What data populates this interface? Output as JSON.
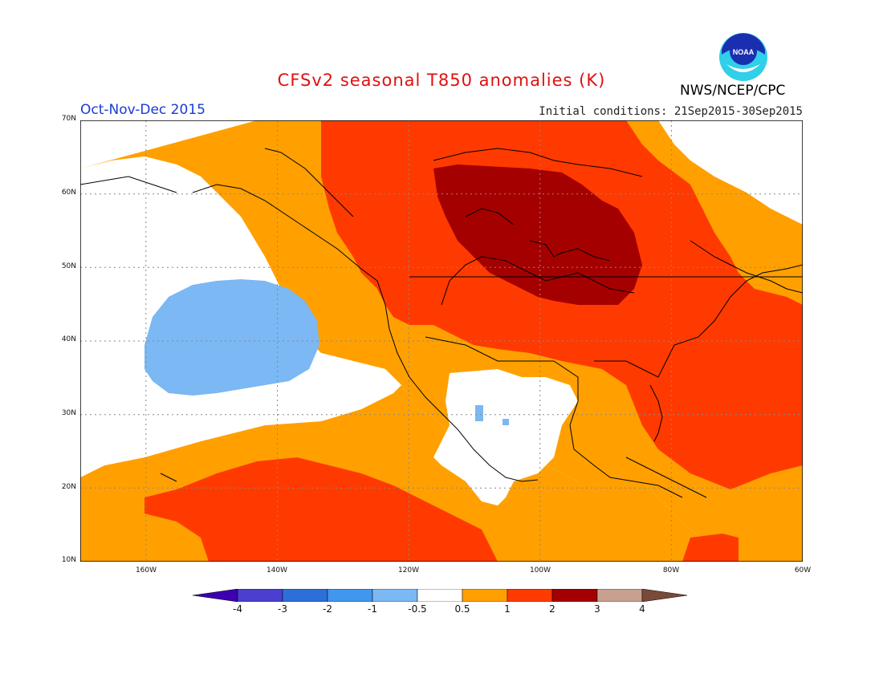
{
  "title": "CFSv2 seasonal T850 anomalies (K)",
  "period": "Oct-Nov-Dec 2015",
  "initial_conditions": "Initial conditions: 21Sep2015-30Sep2015",
  "agency": "NWS/NCEP/CPC",
  "logo_text": "NOAA",
  "lat_labels": [
    "70N",
    "60N",
    "50N",
    "40N",
    "30N",
    "20N",
    "10N"
  ],
  "lon_labels": [
    "160W",
    "140W",
    "120W",
    "100W",
    "80W",
    "60W"
  ],
  "colorbar": {
    "labels": [
      "-4",
      "-3",
      "-2",
      "-1",
      "-0.5",
      "0.5",
      "1",
      "2",
      "3",
      "4"
    ],
    "colors": [
      "#3d00b0",
      "#4a3fd0",
      "#2d6fd9",
      "#3f97ee",
      "#7bb8f4",
      "#ffffff",
      "#ffa000",
      "#ff3a00",
      "#a50000",
      "#c8a090",
      "#7a4a38"
    ]
  },
  "regions": [
    {
      "name": "bering-pacific-neutral",
      "category": "-0.5 to 0.5"
    },
    {
      "name": "northeast-pacific-cool",
      "category": "-1 to -0.5"
    },
    {
      "name": "canada-great-lakes-max",
      "category": "2 to 3"
    },
    {
      "name": "northern-us-canada",
      "category": "1 to 2"
    },
    {
      "name": "tropical-pacific-warm",
      "category": "1 to 2"
    },
    {
      "name": "western-atlantic-warm",
      "category": "1 to 2"
    },
    {
      "name": "mexico-neutral",
      "category": "-0.5 to 0.5"
    }
  ]
}
